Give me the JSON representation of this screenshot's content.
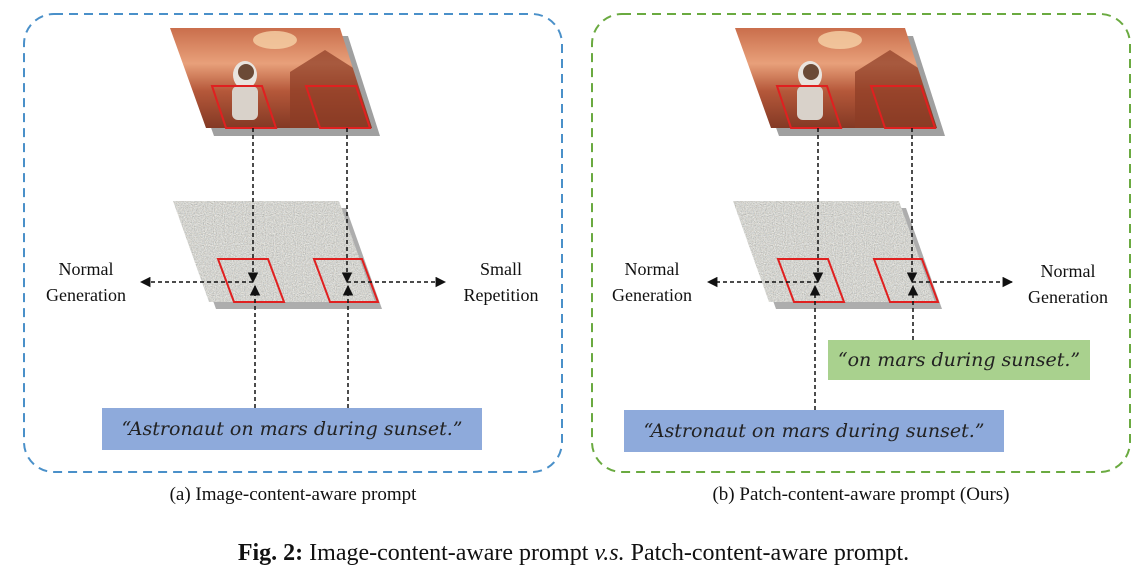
{
  "colors": {
    "panel_a_border": "#4a90c9",
    "panel_b_border": "#6aaa40",
    "patch_outline": "#e02020",
    "prompt_blue": "#8eaadb",
    "prompt_green": "#a9d18e"
  },
  "panel_a": {
    "left_label_line1": "Normal",
    "left_label_line2": "Generation",
    "right_label_line1": "Small",
    "right_label_line2": "Repetition",
    "prompt": "“Astronaut on mars during sunset.”",
    "subcaption": "(a) Image-content-aware prompt"
  },
  "panel_b": {
    "left_label_line1": "Normal",
    "left_label_line2": "Generation",
    "right_label_line1": "Normal",
    "right_label_line2": "Generation",
    "patch_prompt": "“on mars during sunset.”",
    "prompt": "“Astronaut on mars during sunset.”",
    "subcaption": "(b) Patch-content-aware prompt (Ours)"
  },
  "caption": {
    "fig_label": "Fig. 2:",
    "text_before": "Image-content-aware prompt",
    "vs": "v.s.",
    "text_after": "Patch-content-aware prompt."
  }
}
